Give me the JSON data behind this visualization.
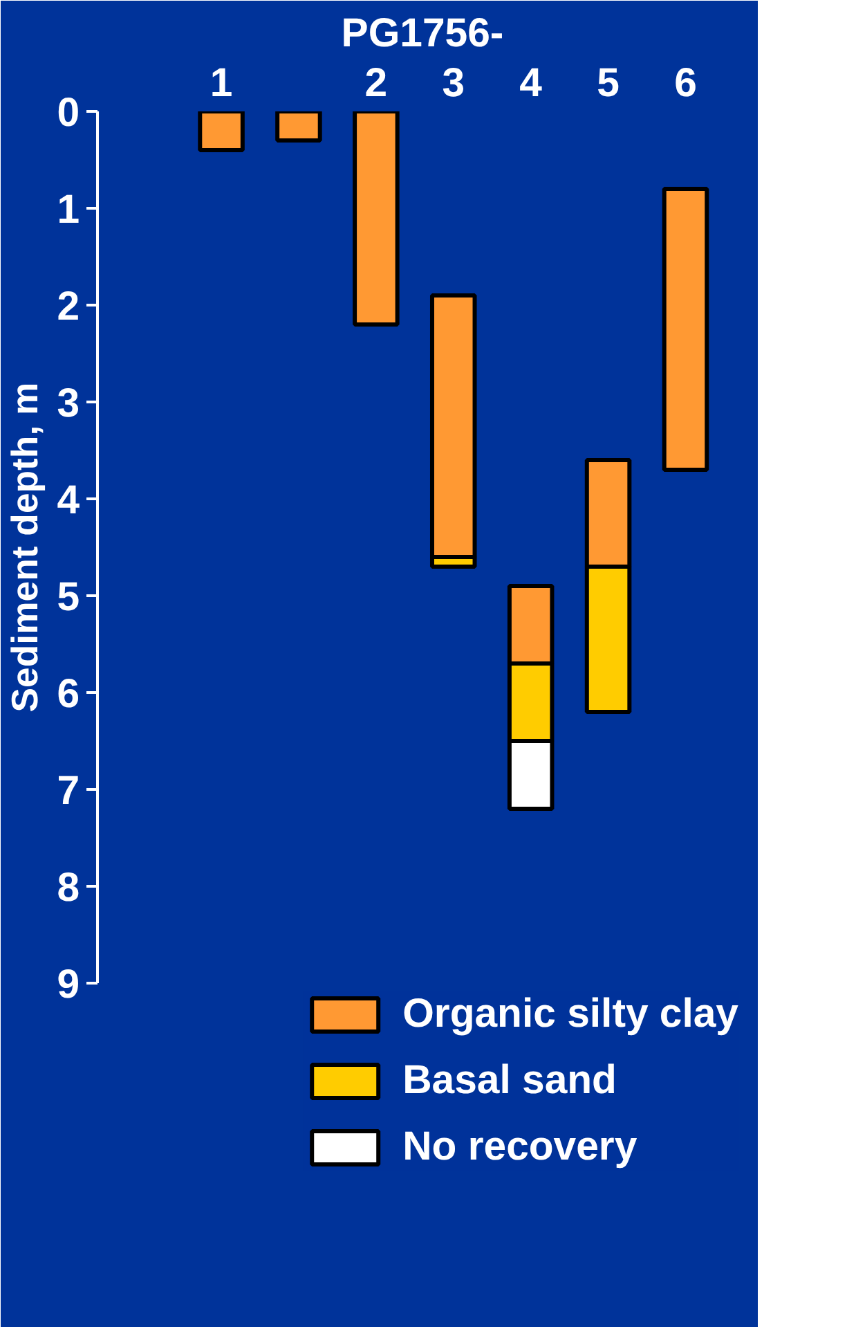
{
  "chart_data": {
    "type": "bar",
    "title": "PG1756-",
    "ylabel": "Sediment depth, m",
    "categories": [
      "1",
      null,
      "2",
      "3",
      "4",
      "5",
      "6"
    ],
    "series": [
      {
        "name": "Organic silty clay",
        "color": "#ff9933",
        "base": [
          0,
          0,
          0,
          1.9,
          4.9,
          3.6,
          0.8
        ],
        "values": [
          0.4,
          0.3,
          2.2,
          2.7,
          0.8,
          1.1,
          2.9
        ]
      },
      {
        "name": "Basal sand",
        "color": "#ffcc00",
        "base": [
          null,
          null,
          null,
          4.6,
          5.7,
          4.7,
          null
        ],
        "values": [
          null,
          null,
          null,
          0.1,
          0.8,
          1.5,
          null
        ]
      },
      {
        "name": "No recovery",
        "color": "#ffffff",
        "base": [
          null,
          null,
          null,
          null,
          6.5,
          null,
          null
        ],
        "values": [
          null,
          null,
          null,
          null,
          0.7,
          null,
          null
        ]
      }
    ],
    "ylim": [
      9,
      0
    ],
    "yticks": [
      0,
      1,
      2,
      3,
      4,
      5,
      6,
      7,
      8,
      9
    ],
    "legend": "bottom"
  }
}
